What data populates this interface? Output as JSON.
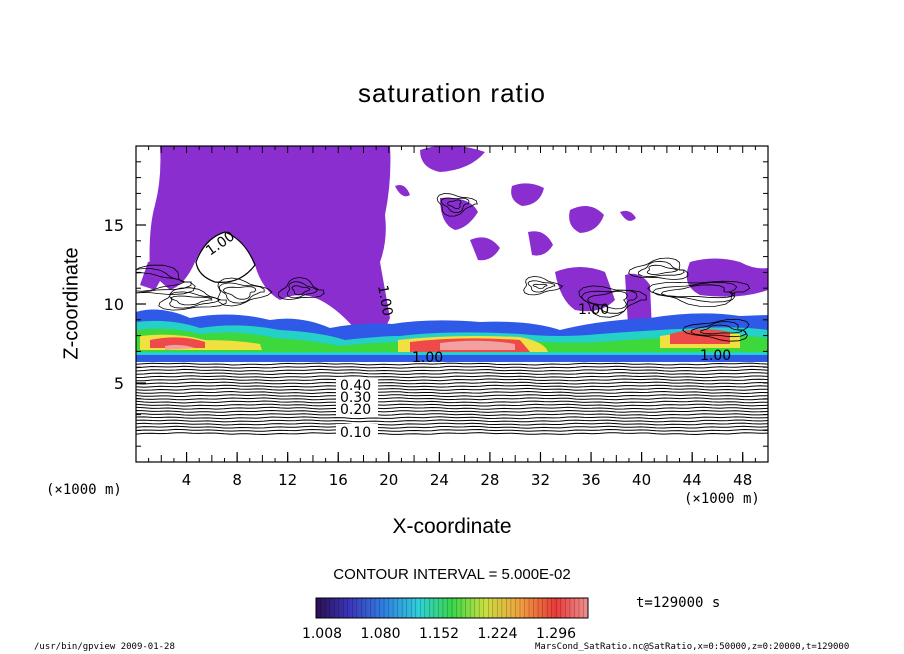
{
  "chart_data": {
    "type": "heatmap",
    "title": "saturation ratio",
    "xlabel": "X-coordinate",
    "ylabel": "Z-coordinate",
    "x_unit": "(×1000 m)",
    "xlim": [
      0,
      50
    ],
    "ylim": [
      0,
      20
    ],
    "x_ticks": [
      4,
      8,
      12,
      16,
      20,
      24,
      28,
      32,
      36,
      40,
      44,
      48
    ],
    "y_ticks": [
      5,
      10,
      15
    ],
    "contour_interval": "CONTOUR INTERVAL = 5.000E-02",
    "contour_labels": [
      "0.10",
      "0.20",
      "0.30",
      "0.40",
      "1.00"
    ],
    "colorbar": {
      "ticks": [
        "1.008",
        "1.080",
        "1.152",
        "1.224",
        "1.296"
      ],
      "colors": [
        "#2a0f52",
        "#3b34b8",
        "#2f7fe0",
        "#2fd0d8",
        "#38d64a",
        "#c8e040",
        "#f0a040",
        "#e83a3a",
        "#f09090"
      ]
    },
    "colors": {
      "saturated": "#8a2ed0",
      "band_blue": "#2f5ae8",
      "band_cyan": "#24d0c8",
      "band_green": "#3cd83c",
      "band_yellow": "#f0e040",
      "band_red": "#ee4a4a",
      "band_pink": "#f3a0a0"
    }
  },
  "time_label": "t=129000 s",
  "footer": {
    "program": "/usr/bin/gpview   2009-01-28",
    "source": "MarsCond_SatRatio.nc@SatRatio,x=0:50000,z=0:20000,t=129000"
  }
}
